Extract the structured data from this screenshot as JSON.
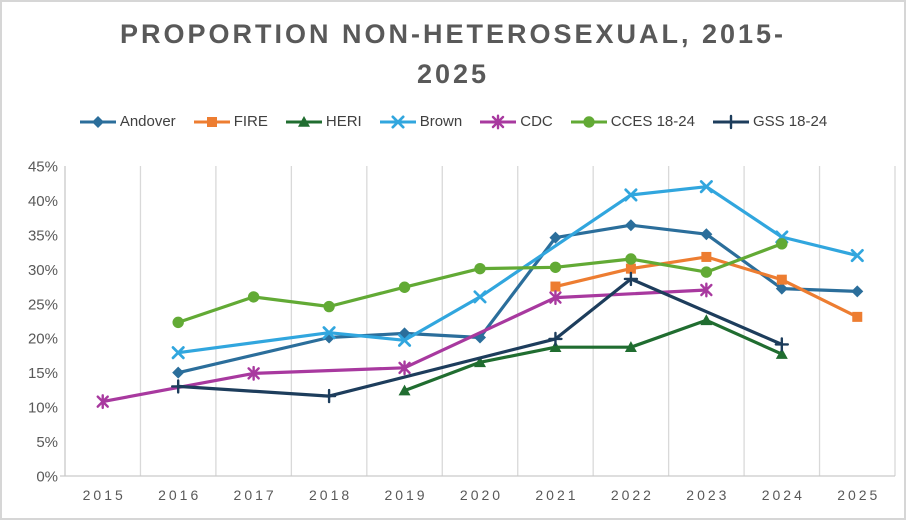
{
  "window": {
    "background_color": "#ffffff",
    "border_color": "#d6d6d6"
  },
  "chart_data": {
    "type": "line",
    "title": "PROPORTION NON-HETEROSEXUAL, 2015-2025",
    "title_lines": [
      "PROPORTION NON-HETEROSEXUAL, 2015-",
      "2025"
    ],
    "title_color": "#595959",
    "xlabel": "",
    "ylabel": "",
    "x_categories": [
      2015,
      2016,
      2017,
      2018,
      2019,
      2020,
      2021,
      2022,
      2023,
      2024,
      2025
    ],
    "x_tick_labels": [
      "2015",
      "2016",
      "2017",
      "2018",
      "2019",
      "2020",
      "2021",
      "2022",
      "2023",
      "2024",
      "2025"
    ],
    "ylim": [
      0,
      45
    ],
    "y_ticks": [
      0,
      5,
      10,
      15,
      20,
      25,
      30,
      35,
      40,
      45
    ],
    "y_tick_labels": [
      "0%",
      "5%",
      "10%",
      "15%",
      "20%",
      "25%",
      "30%",
      "35%",
      "40%",
      "45%"
    ],
    "grid": "vertical-only",
    "grid_color": "#d9d9d9",
    "axis_line_color": "#c9c9c9",
    "tick_label_color": "#595959",
    "legend_position": "top",
    "series": [
      {
        "name": "Andover",
        "color": "#2B6E9B",
        "marker": "diamond",
        "points": [
          [
            2016,
            15
          ],
          [
            2018,
            20.1
          ],
          [
            2019,
            20.7
          ],
          [
            2020,
            20.1
          ],
          [
            2021,
            34.6
          ],
          [
            2022,
            36.4
          ],
          [
            2023,
            35.1
          ],
          [
            2024,
            27.2
          ],
          [
            2025,
            26.8
          ]
        ]
      },
      {
        "name": "FIRE",
        "color": "#ED7D31",
        "marker": "square",
        "points": [
          [
            2021,
            27.5
          ],
          [
            2022,
            30.1
          ],
          [
            2023,
            31.8
          ],
          [
            2024,
            28.5
          ],
          [
            2025,
            23.1
          ]
        ]
      },
      {
        "name": "HERI",
        "color": "#206D30",
        "marker": "triangle",
        "points": [
          [
            2019,
            12.4
          ],
          [
            2020,
            16.5
          ],
          [
            2021,
            18.7
          ],
          [
            2022,
            18.7
          ],
          [
            2023,
            22.6
          ],
          [
            2024,
            17.7
          ]
        ]
      },
      {
        "name": "Brown",
        "color": "#31A6DE",
        "marker": "x",
        "points": [
          [
            2016,
            17.9
          ],
          [
            2018,
            20.8
          ],
          [
            2019,
            19.7
          ],
          [
            2020,
            26
          ],
          [
            2022,
            40.8
          ],
          [
            2023,
            42
          ],
          [
            2024,
            34.7
          ],
          [
            2025,
            32
          ]
        ]
      },
      {
        "name": "CDC",
        "color": "#A8399F",
        "marker": "star",
        "points": [
          [
            2015,
            10.8
          ],
          [
            2017,
            14.9
          ],
          [
            2019,
            15.7
          ],
          [
            2021,
            25.9
          ],
          [
            2023,
            27
          ]
        ]
      },
      {
        "name": "CCES 18-24",
        "color": "#62AA35",
        "marker": "circle",
        "points": [
          [
            2016,
            22.3
          ],
          [
            2017,
            26
          ],
          [
            2018,
            24.6
          ],
          [
            2019,
            27.4
          ],
          [
            2020,
            30.1
          ],
          [
            2021,
            30.3
          ],
          [
            2022,
            31.5
          ],
          [
            2023,
            29.6
          ],
          [
            2024,
            33.7
          ]
        ]
      },
      {
        "name": "GSS 18-24",
        "color": "#1D3D5C",
        "marker": "plus",
        "points": [
          [
            2016,
            13
          ],
          [
            2018,
            11.6
          ],
          [
            2021,
            19.9
          ],
          [
            2022,
            28.6
          ],
          [
            2024,
            19.1
          ]
        ]
      }
    ]
  }
}
